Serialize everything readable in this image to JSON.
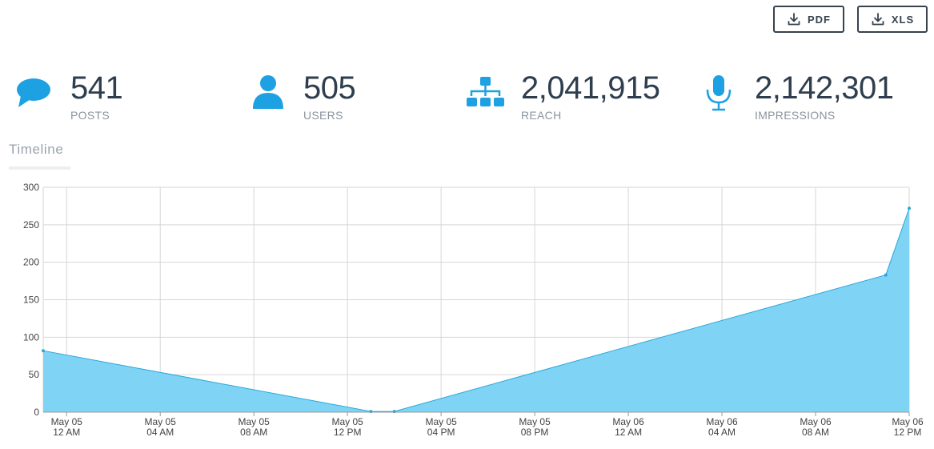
{
  "export": {
    "pdf_label": "PDF",
    "xls_label": "XLS",
    "icon": "download-icon"
  },
  "kpis": [
    {
      "value": "541",
      "label": "POSTS",
      "icon": "speech-bubble-icon"
    },
    {
      "value": "505",
      "label": "USERS",
      "icon": "user-icon"
    },
    {
      "value": "2,041,915",
      "label": "REACH",
      "icon": "sitemap-icon"
    },
    {
      "value": "2,142,301",
      "label": "IMPRESSIONS",
      "icon": "microphone-icon"
    }
  ],
  "tabs": {
    "timeline": "Timeline"
  },
  "colors": {
    "accent": "#1da1e2",
    "area": "#7fd4f6",
    "line": "#2aa8d8",
    "grid": "#d6d6d6",
    "text": "#2f3e4e"
  },
  "chart_data": {
    "type": "area",
    "title": "",
    "xlabel": "",
    "ylabel": "",
    "ylim": [
      0,
      300
    ],
    "y_ticks": [
      0,
      50,
      100,
      150,
      200,
      250,
      300
    ],
    "grid": true,
    "x_tick_labels": [
      [
        "May 05",
        "12 AM"
      ],
      [
        "May 05",
        "04 AM"
      ],
      [
        "May 05",
        "08 AM"
      ],
      [
        "May 05",
        "12 PM"
      ],
      [
        "May 05",
        "04 PM"
      ],
      [
        "May 05",
        "08 PM"
      ],
      [
        "May 06",
        "12 AM"
      ],
      [
        "May 06",
        "04 AM"
      ],
      [
        "May 06",
        "08 AM"
      ],
      [
        "May 06",
        "12 PM"
      ]
    ],
    "x_range": [
      "2024-05-04 23:00",
      "2024-05-06 12:00"
    ],
    "series": [
      {
        "points": [
          {
            "x": "2024-05-04 23:00",
            "y": 82
          },
          {
            "x": "2024-05-05 13:00",
            "y": 1
          },
          {
            "x": "2024-05-05 14:00",
            "y": 1
          },
          {
            "x": "2024-05-06 11:00",
            "y": 183
          },
          {
            "x": "2024-05-06 12:00",
            "y": 272
          }
        ]
      }
    ]
  }
}
